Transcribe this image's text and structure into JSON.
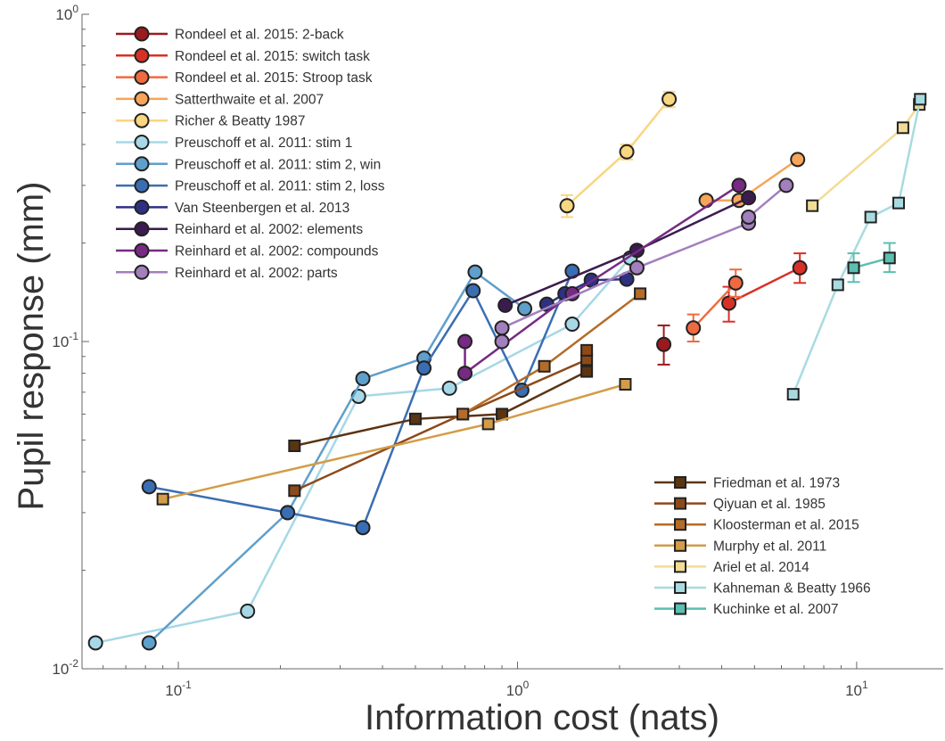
{
  "chart_data": {
    "type": "line",
    "title": "",
    "xlabel": "Information cost (nats)",
    "ylabel": "Pupil response (mm)",
    "xscale": "log",
    "yscale": "log",
    "xlim": [
      0.052,
      18
    ],
    "ylim": [
      0.01,
      1.0
    ],
    "x_ticks": [
      {
        "value": 0.1,
        "base": "10",
        "exp": "-1"
      },
      {
        "value": 1,
        "base": "10",
        "exp": "0"
      },
      {
        "value": 10,
        "base": "10",
        "exp": "1"
      }
    ],
    "y_ticks": [
      {
        "value": 0.01,
        "base": "10",
        "exp": "-2"
      },
      {
        "value": 0.1,
        "base": "10",
        "exp": "-1"
      },
      {
        "value": 1,
        "base": "10",
        "exp": "0"
      }
    ],
    "grid": false,
    "legend_placement": [
      "top-left",
      "bottom-right"
    ],
    "series": [
      {
        "name": "Rondeel et al. 2015: 2-back",
        "color": "#9b1a1e",
        "marker": "circle",
        "legend": 0,
        "points": [
          [
            2.7,
            0.098,
            0.085,
            0.112
          ]
        ]
      },
      {
        "name": "Rondeel et al. 2015: switch task",
        "color": "#d73127",
        "marker": "circle",
        "legend": 0,
        "points": [
          [
            4.2,
            0.131,
            0.115,
            0.147
          ],
          [
            6.8,
            0.168,
            0.151,
            0.186
          ]
        ]
      },
      {
        "name": "Rondeel et al. 2015: Stroop task",
        "color": "#ef6a40",
        "marker": "circle",
        "legend": 0,
        "points": [
          [
            3.3,
            0.11,
            0.1,
            0.121
          ],
          [
            4.4,
            0.151,
            0.137,
            0.166
          ]
        ]
      },
      {
        "name": "Satterthwaite et al. 2007",
        "color": "#f6a55a",
        "marker": "circle",
        "legend": 0,
        "points": [
          [
            3.6,
            0.27
          ],
          [
            4.5,
            0.27
          ],
          [
            6.7,
            0.36
          ]
        ]
      },
      {
        "name": "Richer & Beatty 1987",
        "color": "#f9d680",
        "marker": "circle",
        "legend": 0,
        "points": [
          [
            1.4,
            0.26,
            0.24,
            0.28
          ],
          [
            2.1,
            0.38,
            0.36,
            0.4
          ],
          [
            2.8,
            0.55,
            0.52,
            0.58
          ]
        ]
      },
      {
        "name": "Preuschoff et al. 2011: stim 1",
        "color": "#a6d8e6",
        "marker": "circle",
        "legend": 0,
        "points": [
          [
            0.057,
            0.012
          ],
          [
            0.16,
            0.015
          ],
          [
            0.34,
            0.068
          ],
          [
            0.63,
            0.072
          ],
          [
            1.45,
            0.113
          ],
          [
            2.15,
            0.18
          ]
        ]
      },
      {
        "name": "Preuschoff et al. 2011: stim 2, win",
        "color": "#5f9fcb",
        "marker": "circle",
        "legend": 0,
        "points": [
          [
            0.082,
            0.012
          ],
          [
            0.21,
            0.03
          ],
          [
            0.35,
            0.077
          ],
          [
            0.53,
            0.089
          ],
          [
            0.75,
            0.163
          ],
          [
            1.05,
            0.126
          ]
        ]
      },
      {
        "name": "Preuschoff et al. 2011: stim 2, loss",
        "color": "#3a6eb3",
        "marker": "circle",
        "legend": 0,
        "points": [
          [
            0.082,
            0.036
          ],
          [
            0.21,
            0.03
          ],
          [
            0.35,
            0.027
          ],
          [
            0.53,
            0.083
          ],
          [
            0.74,
            0.143
          ],
          [
            1.03,
            0.071
          ],
          [
            1.45,
            0.164
          ]
        ]
      },
      {
        "name": "Van Steenbergen et al. 2013",
        "color": "#2e3182",
        "marker": "circle",
        "legend": 0,
        "points": [
          [
            1.22,
            0.13
          ],
          [
            1.38,
            0.14
          ],
          [
            1.65,
            0.154
          ],
          [
            2.1,
            0.155
          ]
        ]
      },
      {
        "name": "Reinhard et al. 2002: elements",
        "color": "#3b1c4f",
        "marker": "circle",
        "legend": 0,
        "points": [
          [
            0.92,
            0.129
          ],
          [
            2.25,
            0.19
          ],
          [
            4.8,
            0.275
          ]
        ]
      },
      {
        "name": "Reinhard et al. 2002: compounds",
        "color": "#762a83",
        "marker": "circle",
        "legend": 0,
        "points": [
          [
            0.7,
            0.1
          ],
          [
            0.7,
            0.08
          ],
          [
            1.45,
            0.14
          ],
          [
            4.5,
            0.3
          ]
        ]
      },
      {
        "name": "Reinhard et al. 2002: parts",
        "color": "#a27fbd",
        "marker": "circle",
        "legend": 0,
        "points": [
          [
            0.9,
            0.1
          ],
          [
            0.9,
            0.11
          ],
          [
            2.25,
            0.168
          ],
          [
            4.8,
            0.23
          ],
          [
            4.8,
            0.24
          ],
          [
            6.2,
            0.3
          ]
        ]
      },
      {
        "name": "Friedman et al. 1973",
        "color": "#5b3412",
        "marker": "square",
        "legend": 1,
        "points": [
          [
            0.22,
            0.048
          ],
          [
            0.5,
            0.058
          ],
          [
            0.9,
            0.06
          ],
          [
            1.6,
            0.081
          ]
        ]
      },
      {
        "name": "Qiyuan et al. 1985",
        "color": "#8c4a1a",
        "marker": "square",
        "legend": 1,
        "points": [
          [
            0.22,
            0.035
          ],
          [
            0.69,
            0.06
          ],
          [
            1.6,
            0.088
          ],
          [
            1.6,
            0.094
          ]
        ]
      },
      {
        "name": "Kloosterman et al. 2015",
        "color": "#b46c28",
        "marker": "square",
        "legend": 1,
        "points": [
          [
            0.69,
            0.06
          ],
          [
            1.2,
            0.084
          ],
          [
            2.3,
            0.14
          ]
        ]
      },
      {
        "name": "Murphy et al. 2011",
        "color": "#d39c48",
        "marker": "square",
        "legend": 1,
        "points": [
          [
            0.09,
            0.033
          ],
          [
            0.82,
            0.056
          ],
          [
            2.08,
            0.074
          ]
        ]
      },
      {
        "name": "Ariel et al. 2014",
        "color": "#f2dc94",
        "marker": "square",
        "legend": 1,
        "points": [
          [
            7.4,
            0.26
          ],
          [
            13.7,
            0.45
          ],
          [
            15.3,
            0.53
          ]
        ]
      },
      {
        "name": "Kahneman & Beatty 1966",
        "color": "#a8dbe0",
        "marker": "square",
        "legend": 1,
        "points": [
          [
            6.5,
            0.069
          ],
          [
            8.8,
            0.149
          ],
          [
            11.0,
            0.24
          ],
          [
            13.3,
            0.265
          ],
          [
            15.4,
            0.55
          ]
        ]
      },
      {
        "name": "Kuchinke et al. 2007",
        "color": "#5bbfb1",
        "marker": "square",
        "legend": 1,
        "points": [
          [
            9.8,
            0.168,
            0.152,
            0.186
          ],
          [
            12.5,
            0.18,
            0.163,
            0.2
          ]
        ]
      }
    ]
  }
}
